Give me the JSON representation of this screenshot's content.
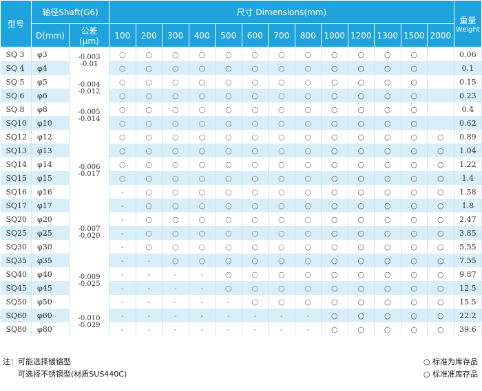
{
  "table": {
    "header": {
      "model": "型号",
      "shaft": "轴径Shaft(G6)",
      "dimensions": "尺寸 Dimensions(mm)",
      "weight_cn": "重量",
      "weight_en": "Weight",
      "diameter": "D(mm)",
      "tolerance_cn": "公差",
      "tolerance_unit": "(μm)",
      "sizes": [
        100,
        200,
        300,
        400,
        500,
        600,
        700,
        800,
        1000,
        1200,
        1300,
        1500,
        2000
      ]
    },
    "rows": [
      {
        "model": "SQ 3",
        "d": "φ3",
        "tolerance": [
          "-0.003",
          "-0.01"
        ],
        "cells": [
          "○",
          "○",
          "○",
          "○",
          "○",
          "○",
          "○",
          "○",
          "○",
          "○",
          "○",
          "○",
          null
        ],
        "weight": "0.06"
      },
      {
        "model": "SQ 4",
        "d": "φ4",
        "tolerance": null,
        "cells": [
          "○",
          "○",
          "○",
          "○",
          "○",
          "○",
          "○",
          "○",
          "○",
          "○",
          "○",
          "○",
          null
        ],
        "weight": "0.1"
      },
      {
        "model": "SQ 5",
        "d": "φ5",
        "tolerance": [
          "-0.004",
          "-0.012"
        ],
        "cells": [
          "○",
          "○",
          "○",
          "○",
          "○",
          "○",
          "○",
          "○",
          "○",
          "○",
          "○",
          "○",
          null
        ],
        "weight": "0.15"
      },
      {
        "model": "SQ 6",
        "d": "φ6",
        "tolerance": null,
        "cells": [
          "○",
          "○",
          "○",
          "○",
          "○",
          "○",
          "○",
          "○",
          "○",
          "○",
          "○",
          "○",
          null
        ],
        "weight": "0.23"
      },
      {
        "model": "SQ 8",
        "d": "φ8",
        "tolerance": [
          "-0.005",
          "-0.014"
        ],
        "cells": [
          "○",
          "○",
          "○",
          "○",
          "○",
          "○",
          "○",
          "○",
          "○",
          "○",
          "○",
          "○",
          null
        ],
        "weight": "0.4"
      },
      {
        "model": "SQ10",
        "d": "φ10",
        "tolerance": null,
        "cells": [
          "○",
          "○",
          "○",
          "○",
          "○",
          "○",
          "○",
          "○",
          "○",
          "○",
          "○",
          "○",
          null
        ],
        "weight": "0.62"
      },
      {
        "model": "SQ12",
        "d": "φ12",
        "tolerance": [
          "-0.006",
          "-0.017"
        ],
        "cells": [
          "○",
          "○",
          "○",
          "○",
          "○",
          "○",
          "○",
          "○",
          "○",
          "○",
          "○",
          "○",
          "○"
        ],
        "weight": "0.89"
      },
      {
        "model": "SQ13",
        "d": "φ13",
        "tolerance": null,
        "cells": [
          "○",
          "○",
          "○",
          "○",
          "○",
          "○",
          "○",
          "○",
          "○",
          "○",
          "○",
          "○",
          "○"
        ],
        "weight": "1.04"
      },
      {
        "model": "SQ14",
        "d": "φ14",
        "tolerance": null,
        "cells": [
          "○",
          "○",
          "○",
          "○",
          "○",
          "○",
          "○",
          "○",
          "○",
          "○",
          "○",
          "○",
          "○"
        ],
        "weight": "1.22"
      },
      {
        "model": "SQ15",
        "d": "φ15",
        "tolerance": null,
        "cells": [
          "○",
          "○",
          "○",
          "○",
          "○",
          "○",
          "○",
          "○",
          "○",
          "○",
          "○",
          "○",
          "○"
        ],
        "weight": "1.4"
      },
      {
        "model": "SQ16",
        "d": "φ16",
        "tolerance": null,
        "cells": [
          "-",
          "○",
          "○",
          "○",
          "○",
          "○",
          "○",
          "○",
          "○",
          "○",
          "○",
          "○",
          "○"
        ],
        "weight": "1.58"
      },
      {
        "model": "SQ17",
        "d": "φ17",
        "tolerance": null,
        "cells": [
          "-",
          "○",
          "○",
          "○",
          "○",
          "○",
          "○",
          "○",
          "○",
          "○",
          "○",
          "○",
          "○"
        ],
        "weight": "1.8"
      },
      {
        "model": "SQ20",
        "d": "φ20",
        "tolerance": [
          "-0.007",
          "-0.020"
        ],
        "cells": [
          "-",
          "○",
          "○",
          "○",
          "○",
          "○",
          "○",
          "○",
          "○",
          "○",
          "○",
          "○",
          "○"
        ],
        "weight": "2.47"
      },
      {
        "model": "SQ25",
        "d": "φ25",
        "tolerance": null,
        "cells": [
          "-",
          "○",
          "○",
          "○",
          "○",
          "○",
          "○",
          "○",
          "○",
          "○",
          "○",
          "○",
          "○"
        ],
        "weight": "3.85"
      },
      {
        "model": "SQ30",
        "d": "φ30",
        "tolerance": null,
        "cells": [
          "-",
          "○",
          "○",
          "○",
          "○",
          "○",
          "○",
          "○",
          "○",
          "○",
          "○",
          "○",
          "○"
        ],
        "weight": "5.55"
      },
      {
        "model": "SQ35",
        "d": "φ35",
        "tolerance": [
          "-0.009",
          "-0.025"
        ],
        "cells": [
          "-",
          "-",
          "○",
          "○",
          "○",
          "○",
          "○",
          "○",
          "○",
          "○",
          "○",
          "○",
          "○"
        ],
        "weight": "7.55"
      },
      {
        "model": "SQ40",
        "d": "φ40",
        "tolerance": null,
        "cells": [
          "-",
          "-",
          "-",
          "-",
          "○",
          "○",
          "○",
          "○",
          "○",
          "○",
          "○",
          "○",
          "○"
        ],
        "weight": "9.87"
      },
      {
        "model": "SQ45",
        "d": "φ45",
        "tolerance": null,
        "cells": [
          "-",
          "-",
          "-",
          "-",
          "○",
          "○",
          "○",
          "○",
          "○",
          "○",
          "○",
          "○",
          "○"
        ],
        "weight": "12.5"
      },
      {
        "model": "SQ50",
        "d": "φ50",
        "tolerance": null,
        "cells": [
          "-",
          "-",
          "-",
          "-",
          "-",
          "○",
          "○",
          "○",
          "○",
          "○",
          "○",
          "○",
          "○"
        ],
        "weight": "15.5"
      },
      {
        "model": "SQ60",
        "d": "φ60",
        "tolerance": [
          "-0.010",
          "-0.029"
        ],
        "cells": [
          "-",
          "-",
          "-",
          "-",
          "-",
          "-",
          "-",
          "-",
          "○",
          "○",
          "○",
          "○",
          "○"
        ],
        "weight": "22.2"
      },
      {
        "model": "SQ80",
        "d": "φ80",
        "tolerance": null,
        "cells": [
          "-",
          "-",
          "-",
          "-",
          "-",
          "-",
          "-",
          "-",
          "○",
          "○",
          "○",
          "○",
          "○"
        ],
        "weight": "39.6"
      }
    ]
  },
  "notes": {
    "label": "注：可能选择镀铬型",
    "line2": "可选择不锈钢型(材质SUS440C)"
  },
  "legend": {
    "stock": "○ 标准为库存品",
    "semi_stock": "○ 标准准库存品"
  }
}
